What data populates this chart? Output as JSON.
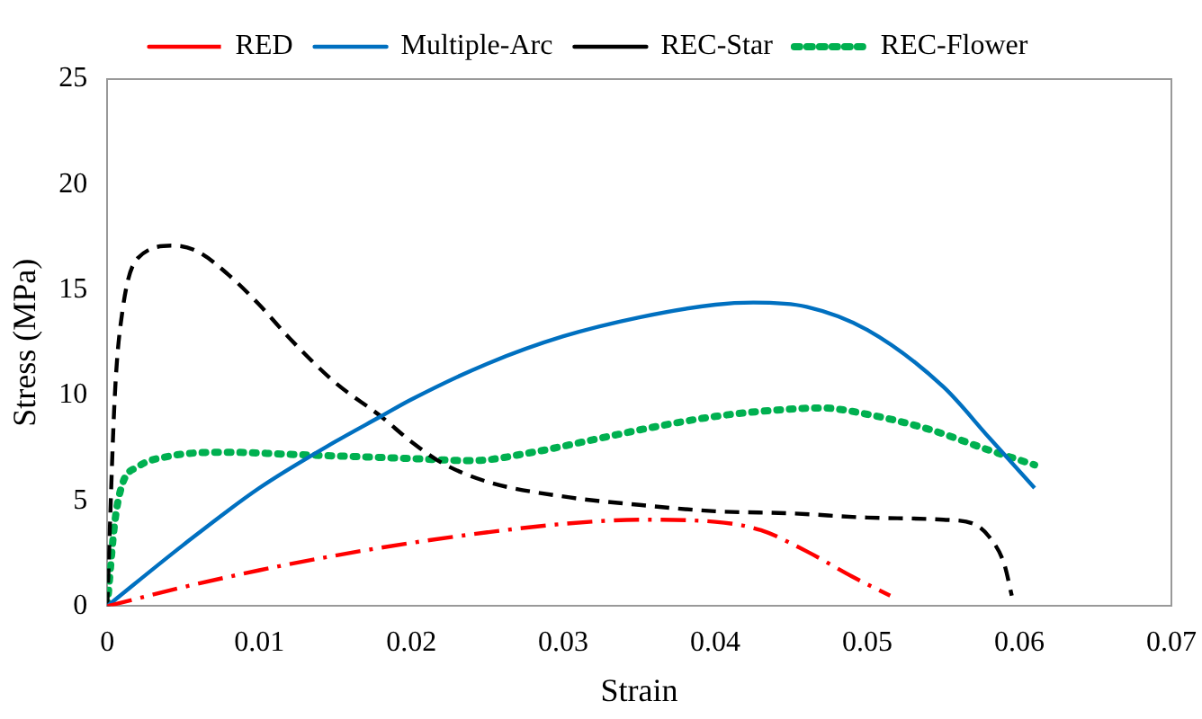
{
  "chart_data": {
    "type": "line",
    "xlabel": "Strain",
    "ylabel": "Stress (MPa)",
    "xlim": [
      0,
      0.07
    ],
    "xticks": [
      0,
      0.01,
      0.02,
      0.03,
      0.04,
      0.05,
      0.06,
      0.07
    ],
    "ylim": [
      0,
      25
    ],
    "yticks": [
      0,
      5,
      10,
      15,
      20,
      25
    ],
    "grid": false,
    "legend": "top",
    "marker": "none",
    "series": [
      {
        "name": "RED",
        "color": "#ff0000",
        "line_style": "dashdot",
        "x": [
          0,
          0.005,
          0.01,
          0.015,
          0.02,
          0.025,
          0.03,
          0.035,
          0.04,
          0.043,
          0.046,
          0.049,
          0.0515
        ],
        "values": [
          0,
          0.9,
          1.7,
          2.4,
          3.0,
          3.5,
          3.9,
          4.1,
          4.0,
          3.6,
          2.6,
          1.4,
          0.5
        ]
      },
      {
        "name": "Multiple-Arc",
        "color": "#0070c0",
        "line_style": "solid",
        "x": [
          0,
          0.005,
          0.01,
          0.015,
          0.018,
          0.02,
          0.025,
          0.03,
          0.035,
          0.04,
          0.0425,
          0.046,
          0.05,
          0.055,
          0.058,
          0.061
        ],
        "values": [
          0,
          2.9,
          5.6,
          7.8,
          9.0,
          9.8,
          11.5,
          12.8,
          13.7,
          14.3,
          14.4,
          14.2,
          13.1,
          10.4,
          8.0,
          5.6
        ]
      },
      {
        "name": "REC-Star",
        "color": "#000000",
        "line_style": "dashed",
        "x": [
          0,
          0.0005,
          0.001,
          0.002,
          0.0044,
          0.006,
          0.008,
          0.01,
          0.012,
          0.015,
          0.018,
          0.02,
          0.022,
          0.025,
          0.03,
          0.035,
          0.04,
          0.045,
          0.05,
          0.055,
          0.057,
          0.058,
          0.059,
          0.0595
        ],
        "values": [
          0,
          10,
          14,
          16.5,
          17.1,
          16.8,
          15.7,
          14.3,
          12.7,
          10.6,
          9.0,
          7.8,
          6.8,
          5.9,
          5.2,
          4.8,
          4.5,
          4.4,
          4.2,
          4.1,
          3.9,
          3.3,
          2,
          0.5
        ]
      },
      {
        "name": "REC-Flower",
        "color": "#00b050",
        "line_style": "dotted",
        "x": [
          0,
          0.0005,
          0.001,
          0.002,
          0.004,
          0.008,
          0.012,
          0.016,
          0.02,
          0.024,
          0.028,
          0.032,
          0.036,
          0.04,
          0.044,
          0.047,
          0.05,
          0.054,
          0.058,
          0.061
        ],
        "values": [
          0,
          4,
          5.8,
          6.6,
          7.1,
          7.3,
          7.2,
          7.1,
          7.0,
          6.9,
          7.3,
          7.9,
          8.5,
          9.0,
          9.3,
          9.4,
          9.1,
          8.4,
          7.4,
          6.7
        ]
      }
    ]
  }
}
